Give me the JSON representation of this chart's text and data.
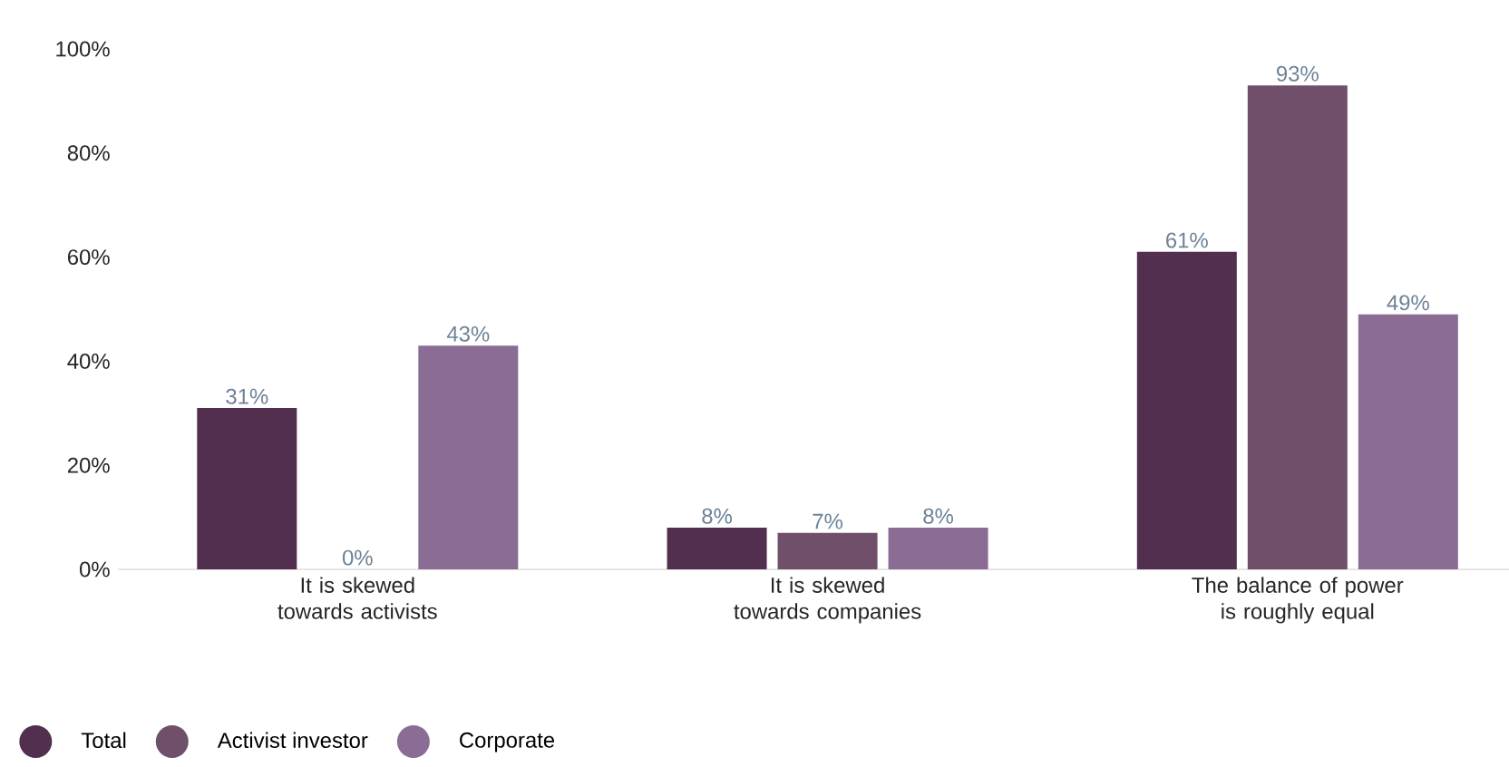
{
  "chart_data": {
    "type": "bar",
    "categories": [
      "It is skewed towards activists",
      "It is skewed towards companies",
      "The balance of power is roughly equal"
    ],
    "series": [
      {
        "name": "Total",
        "color": "#522e4f",
        "values": [
          31,
          8,
          61
        ],
        "value_labels": [
          "31%",
          "8%",
          "61%"
        ]
      },
      {
        "name": "Activist investor",
        "color": "#6f4f69",
        "values": [
          0,
          7,
          93
        ],
        "value_labels": [
          "0%",
          "7%",
          "93%"
        ]
      },
      {
        "name": "Corporate",
        "color": "#8b6c95",
        "values": [
          43,
          8,
          49
        ],
        "value_labels": [
          "43%",
          "8%",
          "49%"
        ]
      }
    ],
    "ylim": [
      0,
      100
    ],
    "yticks": [
      {
        "value": 0,
        "label": "0%"
      },
      {
        "value": 20,
        "label": "20%"
      },
      {
        "value": 40,
        "label": "40%"
      },
      {
        "value": 60,
        "label": "60%"
      },
      {
        "value": 80,
        "label": "80%"
      },
      {
        "value": 100,
        "label": "100%"
      }
    ],
    "legend": "bottom left"
  }
}
